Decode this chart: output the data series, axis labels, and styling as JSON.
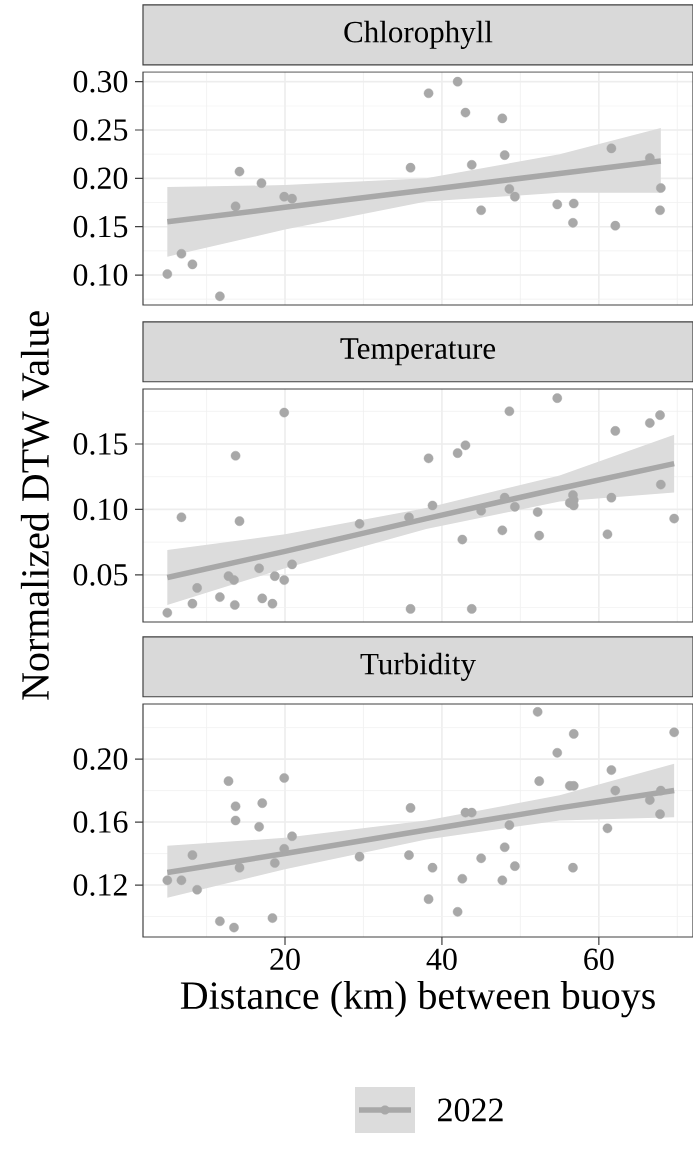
{
  "chart_data": [
    {
      "type": "scatter",
      "title": "Chlorophyll",
      "xlim": [
        1.9,
        72
      ],
      "ylim": [
        0.069,
        0.31
      ],
      "xticks": [
        20,
        40,
        60
      ],
      "yticks": [
        {
          "value": 0.1,
          "label": "0.10"
        },
        {
          "value": 0.15,
          "label": "0.15"
        },
        {
          "value": 0.2,
          "label": "0.20"
        },
        {
          "value": 0.25,
          "label": "0.25"
        },
        {
          "value": 0.3,
          "label": "0.30"
        }
      ],
      "grid": true,
      "tick_labels": "y",
      "series": [
        {
          "marker": "circle",
          "color": "#a8a8a8",
          "x": [
            5.0,
            6.8,
            8.2,
            11.7,
            13.7,
            14.2,
            17.0,
            19.9,
            20.9,
            36.0,
            38.3,
            42.0,
            43.0,
            43.8,
            45.0,
            47.7,
            48.0,
            48.6,
            49.3,
            54.7,
            56.8,
            56.7,
            61.6,
            62.1,
            66.5,
            67.9,
            67.8
          ],
          "values": [
            0.101,
            0.122,
            0.111,
            0.078,
            0.171,
            0.207,
            0.195,
            0.181,
            0.179,
            0.211,
            0.288,
            0.3,
            0.268,
            0.214,
            0.167,
            0.262,
            0.224,
            0.189,
            0.181,
            0.173,
            0.174,
            0.154,
            0.231,
            0.151,
            0.221,
            0.19,
            0.167
          ]
        },
        {
          "type": "line",
          "color": "#a8a8a8",
          "x": [
            5.0,
            20,
            38,
            55,
            67.9
          ],
          "values": [
            0.155,
            0.17,
            0.188,
            0.205,
            0.218
          ],
          "lower": [
            0.119,
            0.147,
            0.176,
            0.185,
            0.185
          ],
          "upper": [
            0.191,
            0.193,
            0.2,
            0.225,
            0.252
          ]
        }
      ]
    },
    {
      "type": "scatter",
      "title": "Temperature",
      "ylabel": "Normalized DTW Value",
      "xlim": [
        1.9,
        72
      ],
      "ylim": [
        0.014,
        0.192
      ],
      "xticks": [
        20,
        40,
        60
      ],
      "yticks": [
        {
          "value": 0.05,
          "label": "0.05"
        },
        {
          "value": 0.1,
          "label": "0.10"
        },
        {
          "value": 0.15,
          "label": "0.15"
        }
      ],
      "grid": true,
      "tick_labels": "y",
      "series": [
        {
          "marker": "circle",
          "color": "#a8a8a8",
          "x": [
            5.0,
            6.8,
            8.2,
            8.8,
            11.7,
            12.8,
            13.5,
            13.6,
            13.7,
            14.2,
            16.7,
            17.1,
            18.4,
            18.7,
            19.9,
            19.9,
            20.9,
            29.5,
            35.8,
            36.0,
            38.3,
            38.8,
            42.0,
            42.6,
            43.0,
            43.8,
            45.0,
            47.7,
            48.0,
            48.6,
            49.3,
            52.2,
            52.4,
            54.7,
            56.3,
            56.7,
            56.8,
            56.8,
            61.1,
            61.6,
            62.1,
            66.5,
            67.8,
            67.9,
            69.6
          ],
          "values": [
            0.021,
            0.094,
            0.028,
            0.04,
            0.033,
            0.049,
            0.046,
            0.027,
            0.141,
            0.091,
            0.055,
            0.032,
            0.028,
            0.049,
            0.046,
            0.174,
            0.058,
            0.089,
            0.094,
            0.024,
            0.139,
            0.103,
            0.143,
            0.077,
            0.149,
            0.024,
            0.099,
            0.084,
            0.109,
            0.175,
            0.102,
            0.098,
            0.08,
            0.185,
            0.105,
            0.111,
            0.107,
            0.103,
            0.081,
            0.109,
            0.16,
            0.166,
            0.172,
            0.119,
            0.093
          ]
        },
        {
          "type": "line",
          "color": "#a8a8a8",
          "x": [
            5.0,
            20,
            38,
            55,
            69.6
          ],
          "values": [
            0.048,
            0.068,
            0.093,
            0.116,
            0.135
          ],
          "lower": [
            0.027,
            0.055,
            0.085,
            0.106,
            0.113
          ],
          "upper": [
            0.069,
            0.081,
            0.101,
            0.126,
            0.157
          ]
        }
      ]
    },
    {
      "type": "scatter",
      "title": "Turbidity",
      "xlabel": "Distance (km) between buoys",
      "xlim": [
        1.9,
        72
      ],
      "ylim": [
        0.087,
        0.235
      ],
      "xticks": [
        20,
        40,
        60
      ],
      "yticks": [
        {
          "value": 0.12,
          "label": "0.12"
        },
        {
          "value": 0.16,
          "label": "0.16"
        },
        {
          "value": 0.2,
          "label": "0.20"
        }
      ],
      "grid": true,
      "legend": "bottom",
      "series": [
        {
          "name": "2022",
          "marker": "circle",
          "color": "#a8a8a8",
          "x": [
            5.0,
            6.8,
            8.2,
            8.8,
            11.7,
            12.8,
            13.5,
            13.7,
            13.7,
            14.2,
            16.7,
            17.1,
            18.4,
            18.7,
            19.9,
            19.9,
            20.9,
            29.5,
            35.8,
            36.0,
            38.3,
            38.8,
            42.0,
            42.6,
            43.0,
            43.8,
            45.0,
            47.7,
            48.0,
            48.6,
            49.3,
            52.2,
            52.4,
            54.7,
            56.3,
            56.8,
            56.8,
            56.7,
            61.1,
            61.6,
            62.1,
            66.5,
            67.8,
            67.9,
            69.6
          ],
          "values": [
            0.123,
            0.123,
            0.139,
            0.117,
            0.097,
            0.186,
            0.093,
            0.17,
            0.161,
            0.131,
            0.157,
            0.172,
            0.099,
            0.134,
            0.143,
            0.188,
            0.151,
            0.138,
            0.139,
            0.169,
            0.111,
            0.131,
            0.103,
            0.124,
            0.166,
            0.166,
            0.137,
            0.123,
            0.144,
            0.158,
            0.132,
            0.23,
            0.186,
            0.204,
            0.183,
            0.216,
            0.183,
            0.131,
            0.156,
            0.193,
            0.18,
            0.174,
            0.165,
            0.18,
            0.217
          ]
        },
        {
          "type": "line",
          "color": "#a8a8a8",
          "x": [
            5.0,
            20,
            38,
            55,
            69.6
          ],
          "values": [
            0.128,
            0.14,
            0.155,
            0.169,
            0.18
          ],
          "lower": [
            0.112,
            0.13,
            0.149,
            0.161,
            0.163
          ],
          "upper": [
            0.145,
            0.15,
            0.161,
            0.177,
            0.197
          ]
        }
      ]
    }
  ]
}
